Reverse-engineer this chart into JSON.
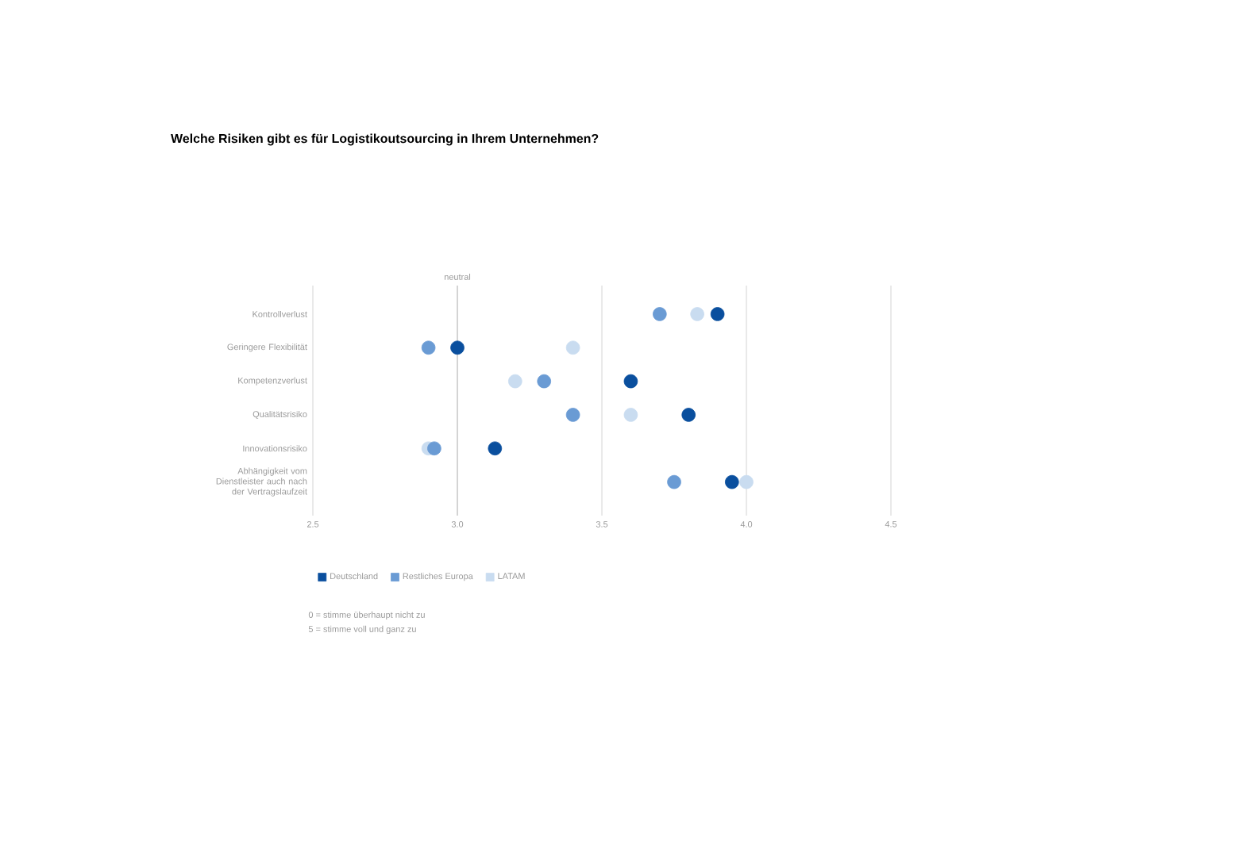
{
  "chart_data": {
    "type": "scatter",
    "orientation": "horizontal",
    "title": "Welche Risiken gibt es für Logistikoutsourcing in Ihrem Unternehmen?",
    "categories": [
      "Kontrollverlust",
      "Geringere Flexibilität",
      "Kompetenzverlust",
      "Qualitätsrisiko",
      "Innovationsrisiko",
      "Abhängigkeit vom Dienstleister auch nach der Vertragslaufzeit"
    ],
    "series": [
      {
        "name": "Deutschland",
        "color": "#0a4f9e",
        "values": [
          3.9,
          3.0,
          3.6,
          3.8,
          3.13,
          3.95
        ]
      },
      {
        "name": "Restliches Europa",
        "color": "#6a9bd4",
        "values": [
          3.7,
          2.9,
          3.3,
          3.4,
          2.92,
          3.75
        ]
      },
      {
        "name": "LATAM",
        "color": "#c9dcf0",
        "values": [
          3.83,
          3.4,
          3.2,
          3.6,
          2.9,
          4.0
        ]
      }
    ],
    "xlim": [
      2.5,
      4.5
    ],
    "xticks": [
      2.5,
      {
        "value": 3,
        "label": "3.0"
      },
      3.5,
      {
        "value": 4,
        "label": "4.0"
      },
      4.5
    ],
    "grid": "x",
    "marker": "circle",
    "legend": "bottom left",
    "ref_lines": [
      {
        "axis": "x",
        "value": 3,
        "label": "neutral",
        "color": "#d4d4d4"
      }
    ],
    "annotations": [
      "0 = stimme überhaupt nicht zu",
      "5 = stimme voll und ganz zu"
    ]
  }
}
